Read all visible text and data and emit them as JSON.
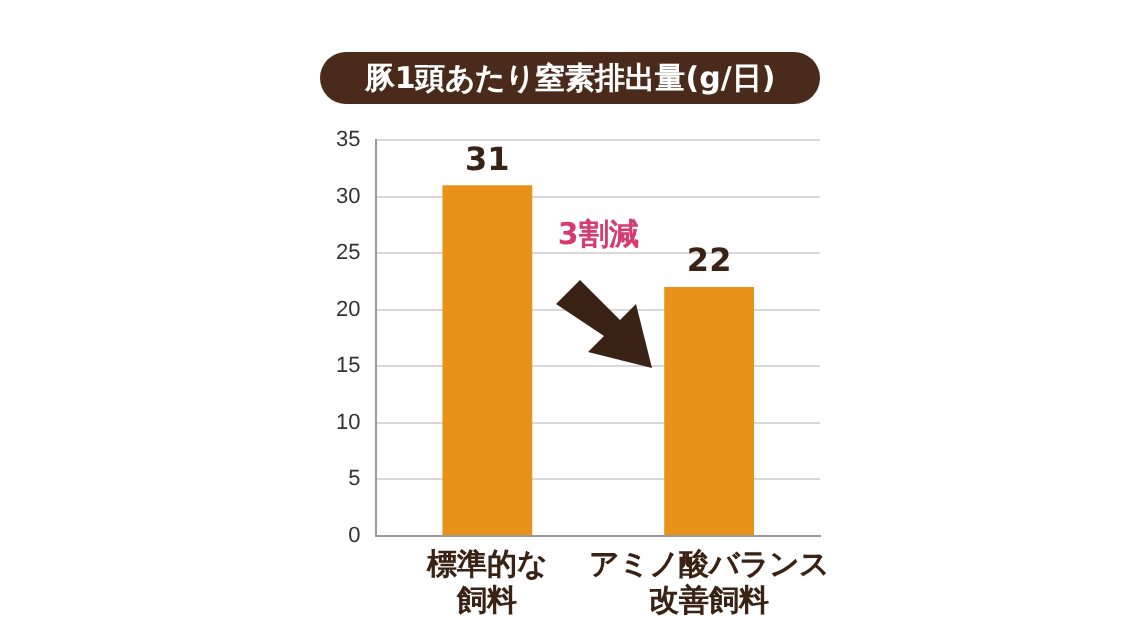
{
  "chart_data": {
    "type": "bar",
    "title": "豚1頭あたり窒素排出量(g/日)",
    "categories": [
      "標準的な飼料",
      "アミノ酸バランス改善飼料"
    ],
    "values": [
      31,
      22
    ],
    "color": "#e8921a",
    "ylim": [
      0,
      35
    ],
    "yticks": [
      0,
      5,
      10,
      15,
      20,
      25,
      30,
      35
    ],
    "grid": "y",
    "data_labels": true,
    "annotations": [
      "3割減"
    ]
  }
}
